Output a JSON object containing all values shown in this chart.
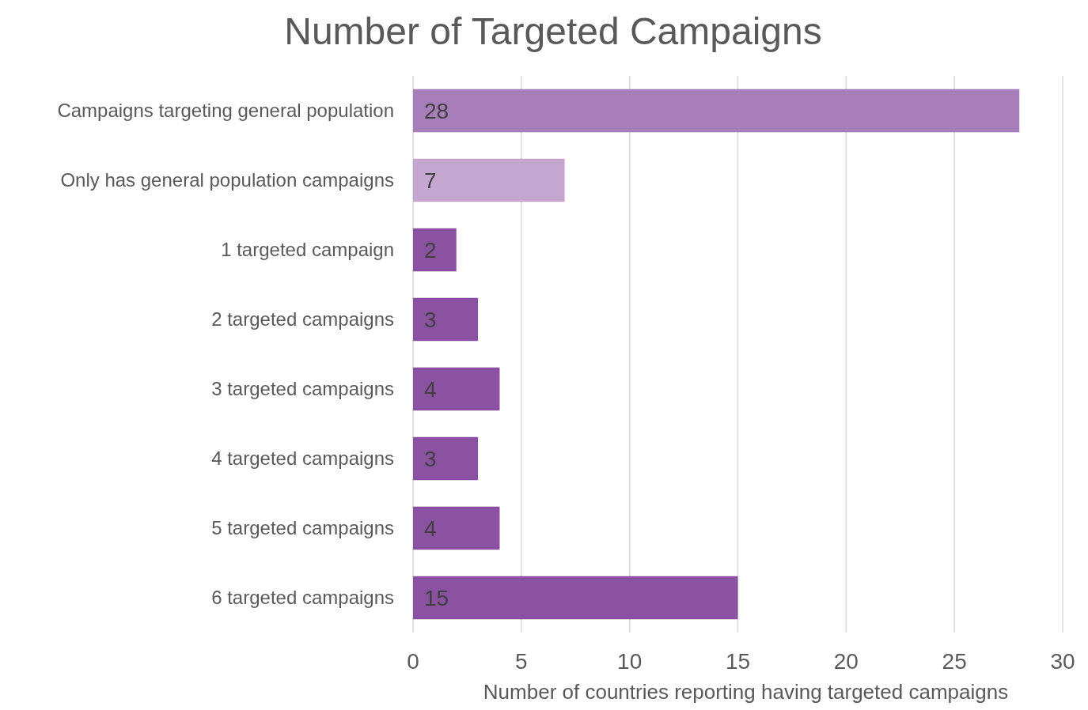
{
  "chart_data": {
    "type": "bar",
    "orientation": "horizontal",
    "title": "Number of Targeted Campaigns",
    "xlabel": "Number of countries reporting having targeted campaigns",
    "categories": [
      "Campaigns targeting general population",
      "Only has general population campaigns",
      "1 targeted campaign",
      "2 targeted campaigns",
      "3 targeted campaigns",
      "4 targeted campaigns",
      "5 targeted campaigns",
      "6 targeted campaigns"
    ],
    "values": [
      28,
      7,
      2,
      3,
      4,
      3,
      4,
      15
    ],
    "colors": [
      "#a77dba",
      "#c5a6d1",
      "#8b52a1",
      "#8b52a1",
      "#8b52a1",
      "#8b52a1",
      "#8b52a1",
      "#8b52a1"
    ],
    "xlim": [
      0,
      30
    ],
    "xticks": [
      0,
      5,
      10,
      15,
      20,
      25,
      30
    ],
    "grid": "x",
    "data_labels": true
  }
}
